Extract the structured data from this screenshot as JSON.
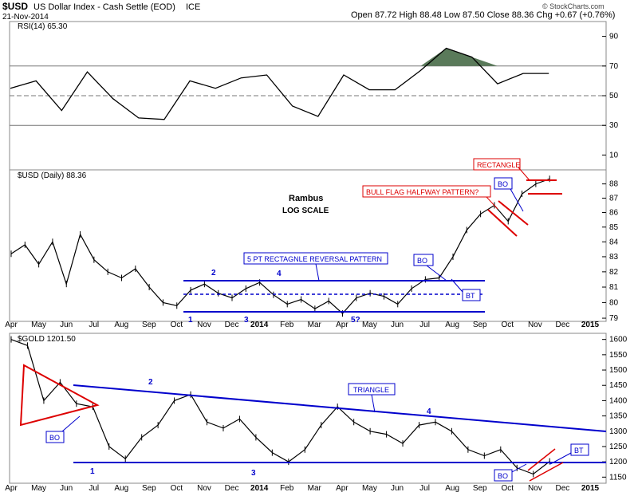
{
  "header": {
    "symbol": "$USD",
    "name": "US Dollar Index - Cash Settle (EOD)",
    "exchange": "ICE",
    "date": "21-Nov-2014",
    "quote": "Open 87.72  High 88.48  Low 87.50  Close 88.36  Chg +0.67 (+0.76%)",
    "credit": "© StockCharts.com"
  },
  "chart_data": [
    {
      "type": "line",
      "panel": "rsi",
      "label": "RSI(14) 65.30",
      "ylim": [
        0,
        100
      ],
      "y_ticks": [
        "90",
        "70",
        "50",
        "30",
        "10"
      ],
      "reference_lines": [
        70,
        50,
        30
      ],
      "x": [
        "Apr-2013",
        "May",
        "Jun",
        "Jul",
        "Aug",
        "Sep",
        "Oct",
        "Nov",
        "Dec",
        "2014",
        "Feb",
        "Mar",
        "Apr",
        "May",
        "Jun",
        "Jul",
        "Aug",
        "Sep",
        "Oct",
        "Nov",
        "Dec",
        "2015"
      ],
      "values": [
        55,
        60,
        40,
        66,
        48,
        35,
        34,
        60,
        55,
        62,
        64,
        43,
        36,
        64,
        54,
        54,
        67,
        82,
        76,
        58,
        65,
        65
      ],
      "overbought_fill": "#5a7a5a"
    },
    {
      "type": "line",
      "panel": "usd",
      "label": "$USD (Daily) 88.36",
      "scale": "log",
      "ylim": [
        78.8,
        89.0
      ],
      "y_ticks": [
        "88",
        "87",
        "86",
        "85",
        "84",
        "83",
        "82",
        "81",
        "80",
        "79"
      ],
      "annotations_text": {
        "title1": "Rambus",
        "title2": "LOG SCALE",
        "rect_pattern": "5 PT RECTAGNLE REVERSAL PATTERN",
        "bull_flag": "BULL FLAG HALFWAY PATTERN?",
        "rectangle": "RECTANGLE",
        "bo1": "BO",
        "bo2": "BO",
        "bt": "BT",
        "p1": "1",
        "p2": "2",
        "p3": "3",
        "p4": "4",
        "p5": "5?"
      },
      "levels": {
        "rect_top": 81.4,
        "rect_mid": 80.5,
        "rect_bottom": 79.4,
        "rect2_top": 88.2,
        "rect2_bottom": 87.3
      },
      "close": [
        [
          "Apr-2013",
          83.2
        ],
        [
          "May",
          83.8
        ],
        [
          "May",
          82.5
        ],
        [
          "Jun",
          84.0
        ],
        [
          "Jun",
          81.2
        ],
        [
          "Jul",
          84.5
        ],
        [
          "Jul",
          82.8
        ],
        [
          "Aug",
          82.0
        ],
        [
          "Aug",
          81.6
        ],
        [
          "Sep",
          82.2
        ],
        [
          "Sep",
          81.0
        ],
        [
          "Oct",
          80.0
        ],
        [
          "Oct",
          79.8
        ],
        [
          "Nov",
          80.8
        ],
        [
          "Nov",
          81.2
        ],
        [
          "Dec",
          80.6
        ],
        [
          "Dec",
          80.3
        ],
        [
          "2014",
          80.9
        ],
        [
          "Feb",
          81.3
        ],
        [
          "Feb",
          80.5
        ],
        [
          "Mar",
          79.9
        ],
        [
          "Mar",
          80.2
        ],
        [
          "Apr",
          79.6
        ],
        [
          "Apr",
          80.1
        ],
        [
          "May",
          79.3
        ],
        [
          "May",
          80.3
        ],
        [
          "Jun",
          80.6
        ],
        [
          "Jun",
          80.4
        ],
        [
          "Jul",
          79.9
        ],
        [
          "Jul",
          80.9
        ],
        [
          "Aug",
          81.5
        ],
        [
          "Aug",
          81.6
        ],
        [
          "Sep",
          83.0
        ],
        [
          "Sep",
          84.8
        ],
        [
          "Oct",
          85.9
        ],
        [
          "Oct",
          86.5
        ],
        [
          "Oct",
          85.4
        ],
        [
          "Nov",
          87.3
        ],
        [
          "Nov",
          88.0
        ],
        [
          "Nov",
          88.36
        ]
      ]
    },
    {
      "type": "line",
      "panel": "gold",
      "label": "$GOLD 1201.50",
      "ylim": [
        1130,
        1620
      ],
      "y_ticks": [
        "1600",
        "1550",
        "1500",
        "1450",
        "1400",
        "1350",
        "1300",
        "1250",
        "1200",
        "1150"
      ],
      "annotations_text": {
        "triangle": "TRIANGLE",
        "bo1": "BO",
        "bo2": "BO",
        "bt": "BT",
        "p1": "1",
        "p2": "2",
        "p3": "3",
        "p4": "4"
      },
      "levels": {
        "support": 1190
      },
      "close": [
        [
          "Apr-2013",
          1600
        ],
        [
          "Apr",
          1580
        ],
        [
          "Apr",
          1400
        ],
        [
          "May",
          1460
        ],
        [
          "May",
          1390
        ],
        [
          "Jun",
          1380
        ],
        [
          "Jun",
          1250
        ],
        [
          "Jul",
          1210
        ],
        [
          "Jul",
          1280
        ],
        [
          "Aug",
          1320
        ],
        [
          "Aug",
          1400
        ],
        [
          "Sep",
          1420
        ],
        [
          "Sep",
          1330
        ],
        [
          "Oct",
          1310
        ],
        [
          "Oct",
          1340
        ],
        [
          "Nov",
          1280
        ],
        [
          "Dec",
          1230
        ],
        [
          "Dec",
          1200
        ],
        [
          "2014",
          1240
        ],
        [
          "Feb",
          1320
        ],
        [
          "Mar",
          1380
        ],
        [
          "Mar",
          1330
        ],
        [
          "Apr",
          1300
        ],
        [
          "May",
          1290
        ],
        [
          "Jun",
          1260
        ],
        [
          "Jun",
          1320
        ],
        [
          "Jul",
          1330
        ],
        [
          "Aug",
          1300
        ],
        [
          "Sep",
          1240
        ],
        [
          "Oct",
          1220
        ],
        [
          "Oct",
          1240
        ],
        [
          "Nov",
          1180
        ],
        [
          "Nov",
          1160
        ],
        [
          "Nov",
          1201.5
        ]
      ]
    }
  ],
  "x_axis": {
    "labels": [
      "Apr",
      "May",
      "Jun",
      "Jul",
      "Aug",
      "Sep",
      "Oct",
      "Nov",
      "Dec",
      "2014",
      "Feb",
      "Mar",
      "Apr",
      "May",
      "Jun",
      "Jul",
      "Aug",
      "Sep",
      "Oct",
      "Nov",
      "Dec",
      "2015"
    ],
    "bold": [
      "2014",
      "2015"
    ]
  }
}
